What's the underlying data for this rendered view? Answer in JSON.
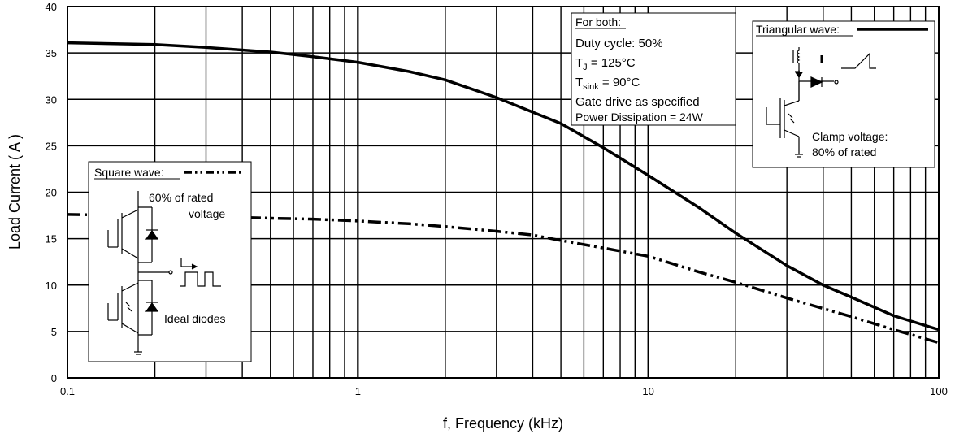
{
  "chart_data": {
    "type": "line",
    "xlabel": "f, Frequency (kHz)",
    "ylabel": "Load Current ( A )",
    "x_scale": "log",
    "xlim": [
      0.1,
      100
    ],
    "ylim": [
      0,
      40
    ],
    "x_ticks": [
      "0.1",
      "1",
      "10",
      "100"
    ],
    "y_ticks": [
      "0",
      "5",
      "10",
      "15",
      "20",
      "25",
      "30",
      "35",
      "40"
    ],
    "grid": true,
    "series": [
      {
        "name": "Triangular wave",
        "style": "solid",
        "color": "#000000",
        "points": [
          [
            0.1,
            36.1
          ],
          [
            0.2,
            35.9
          ],
          [
            0.3,
            35.6
          ],
          [
            0.5,
            35.1
          ],
          [
            0.7,
            34.6
          ],
          [
            1,
            34.0
          ],
          [
            1.5,
            33.0
          ],
          [
            2,
            32.1
          ],
          [
            3,
            30.2
          ],
          [
            5,
            27.4
          ],
          [
            7,
            24.8
          ],
          [
            10,
            21.8
          ],
          [
            15,
            18.3
          ],
          [
            20,
            15.6
          ],
          [
            30,
            12.1
          ],
          [
            40,
            10.0
          ],
          [
            50,
            8.7
          ],
          [
            70,
            6.7
          ],
          [
            100,
            5.2
          ]
        ]
      },
      {
        "name": "Square wave",
        "style": "dash-dot-dot",
        "color": "#000000",
        "points": [
          [
            0.1,
            17.6
          ],
          [
            0.3,
            17.4
          ],
          [
            0.5,
            17.2
          ],
          [
            0.7,
            17.1
          ],
          [
            1,
            16.9
          ],
          [
            1.5,
            16.6
          ],
          [
            2,
            16.3
          ],
          [
            3,
            15.8
          ],
          [
            4,
            15.4
          ],
          [
            5,
            14.8
          ],
          [
            7,
            14.0
          ],
          [
            10,
            13.1
          ],
          [
            15,
            11.4
          ],
          [
            20,
            10.3
          ],
          [
            30,
            8.6
          ],
          [
            50,
            6.6
          ],
          [
            70,
            5.2
          ],
          [
            100,
            3.8
          ]
        ]
      }
    ],
    "annotations": {
      "for_both": {
        "title": "For both:",
        "lines": [
          "Duty cycle: 50%",
          "T",
          "J",
          " = 125°C",
          "T",
          "sink",
          " = 90°C",
          "Gate drive as specified",
          "Power Dissipation = 24W"
        ]
      },
      "triangular": {
        "legend_label": "Triangular wave:",
        "clamp_line1": "Clamp voltage:",
        "clamp_line2": "80% of rated"
      },
      "square": {
        "legend_label": "Square wave:",
        "rated_line1": "60% of rated",
        "rated_line2": "voltage",
        "diodes": "Ideal diodes"
      }
    }
  }
}
